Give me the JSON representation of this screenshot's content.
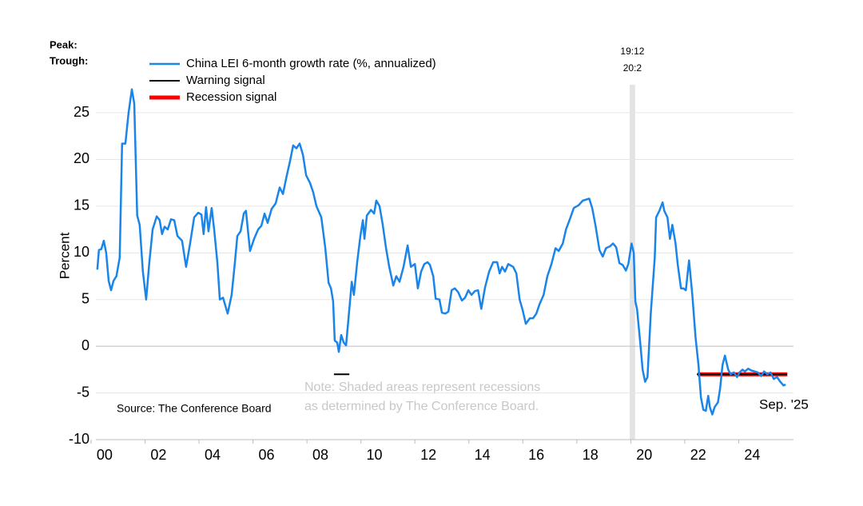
{
  "chart_data": {
    "type": "line",
    "y_label": "Percent",
    "peak_label": "Peak:",
    "trough_label": "Trough:",
    "source": "Source: The Conference Board",
    "note": [
      "Note: Shaded areas represent recessions",
      "as determined by The Conference Board."
    ],
    "end_label": "Sep. '25",
    "xlim": [
      2000,
      2026
    ],
    "xticks": [
      {
        "value": 2000,
        "label": "00"
      },
      {
        "value": 2002,
        "label": "02"
      },
      {
        "value": 2004,
        "label": "04"
      },
      {
        "value": 2006,
        "label": "06"
      },
      {
        "value": 2008,
        "label": "08"
      },
      {
        "value": 2010,
        "label": "10"
      },
      {
        "value": 2012,
        "label": "12"
      },
      {
        "value": 2014,
        "label": "14"
      },
      {
        "value": 2016,
        "label": "16"
      },
      {
        "value": 2018,
        "label": "18"
      },
      {
        "value": 2020,
        "label": "20"
      },
      {
        "value": 2022,
        "label": "22"
      },
      {
        "value": 2024,
        "label": "24"
      }
    ],
    "ylim": [
      -10,
      28
    ],
    "yticks": [
      -10,
      -5,
      0,
      5,
      10,
      15,
      20,
      25
    ],
    "grid": true,
    "recessions": [
      {
        "peak": "19:12",
        "trough": "20:2",
        "start": 2019.96,
        "end": 2020.16,
        "color": "#e3e3e3"
      }
    ],
    "series": [
      {
        "name": "China LEI 6-month growth rate (%, annualized)",
        "color": "#1a85e8",
        "x": [
          2000.23,
          2000.29,
          2000.38,
          2000.47,
          2000.56,
          2000.65,
          2000.74,
          2000.83,
          2000.94,
          2001.06,
          2001.15,
          2001.27,
          2001.39,
          2001.51,
          2001.6,
          2001.71,
          2001.8,
          2001.92,
          2002.04,
          2002.16,
          2002.28,
          2002.43,
          2002.54,
          2002.63,
          2002.72,
          2002.84,
          2002.96,
          2003.08,
          2003.2,
          2003.37,
          2003.52,
          2003.67,
          2003.82,
          2003.97,
          2004.09,
          2004.17,
          2004.26,
          2004.35,
          2004.47,
          2004.56,
          2004.68,
          2004.77,
          2004.89,
          2005.06,
          2005.21,
          2005.33,
          2005.42,
          2005.54,
          2005.66,
          2005.74,
          2005.89,
          2006.04,
          2006.19,
          2006.31,
          2006.43,
          2006.54,
          2006.69,
          2006.84,
          2006.99,
          2007.11,
          2007.23,
          2007.37,
          2007.49,
          2007.61,
          2007.73,
          2007.85,
          2007.97,
          2008.11,
          2008.23,
          2008.35,
          2008.53,
          2008.68,
          2008.8,
          2008.89,
          2008.97,
          2009.03,
          2009.12,
          2009.18,
          2009.27,
          2009.36,
          2009.45,
          2009.57,
          2009.66,
          2009.74,
          2009.86,
          2009.98,
          2010.07,
          2010.13,
          2010.22,
          2010.37,
          2010.49,
          2010.57,
          2010.69,
          2010.81,
          2010.93,
          2011.05,
          2011.2,
          2011.31,
          2011.43,
          2011.58,
          2011.73,
          2011.85,
          2012.0,
          2012.11,
          2012.23,
          2012.35,
          2012.47,
          2012.56,
          2012.68,
          2012.77,
          2012.91,
          2013.0,
          2013.12,
          2013.24,
          2013.36,
          2013.48,
          2013.6,
          2013.74,
          2013.86,
          2013.98,
          2014.1,
          2014.22,
          2014.34,
          2014.46,
          2014.6,
          2014.75,
          2014.9,
          2015.05,
          2015.14,
          2015.23,
          2015.34,
          2015.46,
          2015.64,
          2015.76,
          2015.88,
          2016.0,
          2016.11,
          2016.26,
          2016.38,
          2016.5,
          2016.62,
          2016.77,
          2016.91,
          2017.06,
          2017.21,
          2017.33,
          2017.48,
          2017.6,
          2017.74,
          2017.89,
          2018.07,
          2018.22,
          2018.46,
          2018.57,
          2018.69,
          2018.84,
          2018.96,
          2019.08,
          2019.23,
          2019.34,
          2019.46,
          2019.58,
          2019.7,
          2019.82,
          2019.91,
          2020.03,
          2020.11,
          2020.17,
          2020.23,
          2020.35,
          2020.44,
          2020.53,
          2020.62,
          2020.74,
          2020.89,
          2020.94,
          2021.06,
          2021.18,
          2021.24,
          2021.36,
          2021.45,
          2021.54,
          2021.66,
          2021.74,
          2021.86,
          2021.95,
          2022.04,
          2022.16,
          2022.28,
          2022.4,
          2022.51,
          2022.6,
          2022.69,
          2022.78,
          2022.87,
          2022.93,
          2023.02,
          2023.11,
          2023.23,
          2023.31,
          2023.4,
          2023.49,
          2023.61,
          2023.7,
          2023.82,
          2023.94,
          2024.03,
          2024.14,
          2024.23,
          2024.35,
          2024.47,
          2024.59,
          2024.71,
          2024.83,
          2024.94,
          2025.06,
          2025.18,
          2025.3,
          2025.42,
          2025.54,
          2025.66,
          2025.74
        ],
        "values": [
          8.2,
          10.3,
          10.4,
          11.3,
          10,
          7,
          6,
          7,
          7.5,
          9.5,
          21.7,
          21.7,
          25,
          27.5,
          26,
          14,
          13,
          8,
          5,
          9,
          12.5,
          13.9,
          13.5,
          12,
          12.8,
          12.5,
          13.6,
          13.5,
          11.8,
          11.3,
          8.5,
          11,
          13.8,
          14.3,
          14.1,
          12,
          14.9,
          12.3,
          14.8,
          12.5,
          9,
          5,
          5.2,
          3.5,
          5.5,
          9,
          11.8,
          12.3,
          14.2,
          14.5,
          10.2,
          11.5,
          12.5,
          12.9,
          14.2,
          13.2,
          14.7,
          15.3,
          17,
          16.3,
          18,
          19.8,
          21.5,
          21.2,
          21.7,
          20.5,
          18.3,
          17.5,
          16.5,
          15,
          13.8,
          10.5,
          6.8,
          6.2,
          4.8,
          0.6,
          0.4,
          -0.6,
          1.2,
          0.4,
          0.1,
          4,
          6.9,
          5.5,
          9,
          11.8,
          13.5,
          11.5,
          14,
          14.6,
          14.2,
          15.6,
          15,
          13,
          10.5,
          8.5,
          6.5,
          7.5,
          6.9,
          8.5,
          10.8,
          8.5,
          8.8,
          6.2,
          8,
          8.8,
          9,
          8.7,
          7.5,
          5.1,
          5,
          3.6,
          3.5,
          3.7,
          6,
          6.2,
          5.8,
          4.9,
          5.2,
          6,
          5.5,
          5.9,
          6,
          4,
          6.3,
          8,
          9,
          9,
          7.8,
          8.5,
          8,
          8.8,
          8.5,
          7.8,
          5,
          3.8,
          2.4,
          3,
          3,
          3.5,
          4.5,
          5.5,
          7.5,
          8.8,
          10.5,
          10.2,
          11,
          12.5,
          13.6,
          14.8,
          15.1,
          15.6,
          15.8,
          14.8,
          13,
          10.3,
          9.6,
          10.5,
          10.7,
          11,
          10.6,
          8.9,
          8.7,
          8.1,
          8.8,
          11,
          10,
          4.8,
          4,
          0.4,
          -2.5,
          -3.8,
          -3.3,
          3.5,
          9.5,
          13.8,
          14.5,
          15.4,
          14.5,
          13.8,
          11.5,
          13,
          11,
          8.8,
          6.2,
          6.2,
          6,
          9.2,
          5.5,
          1,
          -2,
          -5.5,
          -6.8,
          -6.9,
          -5.3,
          -6.5,
          -7.3,
          -6.5,
          -6,
          -4.5,
          -2,
          -1,
          -2.5,
          -3,
          -2.8,
          -3.3,
          -2.8,
          -2.5,
          -2.7,
          -2.4,
          -2.6,
          -2.7,
          -2.8,
          -3.2,
          -2.7,
          -3,
          -2.8,
          -3.5,
          -3.3,
          -3.8,
          -4.2,
          -4.1
        ]
      },
      {
        "name": "Warning signal",
        "color": "#000000",
        "x": [
          2009.0,
          2009.57,
          2009.6,
          2022.45,
          2025.8
        ],
        "values": [
          -3,
          -3,
          null,
          -3,
          -3
        ]
      },
      {
        "name": "Recession signal",
        "color": "#ff0000",
        "x": [
          2022.48,
          2025.8
        ],
        "values": [
          -3,
          -3
        ]
      }
    ]
  }
}
